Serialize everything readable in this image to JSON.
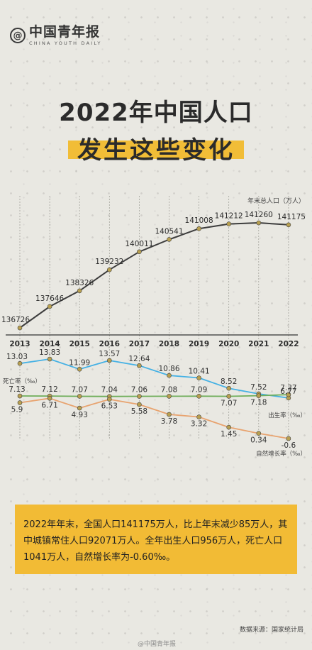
{
  "brand": {
    "logo_glyph": "@",
    "name_cn": "中国青年报",
    "name_en": "CHINA YOUTH DAILY"
  },
  "title": {
    "line1": "2022年中国人口",
    "line2": "发生这些变化"
  },
  "colors": {
    "accent": "#f2bb35",
    "population": "#3d3d3d",
    "death": "#45b1e4",
    "birth": "#6fae5a",
    "growth": "#e8a36f",
    "marker": "#b8a050"
  },
  "chart_data": {
    "type": "line",
    "x": [
      "2013",
      "2014",
      "2015",
      "2016",
      "2017",
      "2018",
      "2019",
      "2020",
      "2021",
      "2022"
    ],
    "series": [
      {
        "name": "年末总人口（万人）",
        "values": [
          136726,
          137646,
          138326,
          139232,
          140011,
          140541,
          141008,
          141212,
          141260,
          141175
        ]
      },
      {
        "name": "死亡率（‰）",
        "values": [
          7.13,
          7.12,
          7.07,
          7.04,
          7.06,
          7.08,
          7.09,
          7.07,
          7.18,
          7.37
        ]
      },
      {
        "name": "出生率（‰）",
        "values": [
          13.03,
          13.83,
          11.99,
          13.57,
          12.64,
          10.86,
          10.41,
          8.52,
          7.52,
          6.77
        ]
      },
      {
        "name": "自然增长率（‰）",
        "values": [
          5.9,
          6.71,
          4.93,
          6.53,
          5.58,
          3.78,
          3.32,
          1.45,
          0.34,
          -0.6
        ]
      }
    ],
    "value_labels": {
      "population": [
        "136726",
        "137646",
        "138326",
        "139232",
        "140011",
        "140541",
        "141008",
        "141212",
        "141260",
        "141175"
      ],
      "birth": [
        "13.03",
        "13.83",
        "11.99",
        "13.57",
        "12.64",
        "10.86",
        "10.41",
        "8.52",
        "7.52",
        "6.77"
      ],
      "death": [
        "7.13",
        "7.12",
        "7.07",
        "7.04",
        "7.06",
        "7.08",
        "7.09",
        "7.07",
        "7.18",
        "7.37"
      ],
      "growth": [
        "5.9",
        "6.71",
        "4.93",
        "6.53",
        "5.58",
        "3.78",
        "3.32",
        "1.45",
        "0.34",
        "-0.6"
      ]
    },
    "grid": "vertical dashed"
  },
  "summary": "2022年年末，全国人口141175万人，比上年末减少85万人，其中城镇常住人口92071万人。全年出生人口956万人，死亡人口1041万人，自然增长率为-0.60‰。",
  "source": "数据来源：国家统计局",
  "watermark": "@中国青年报"
}
